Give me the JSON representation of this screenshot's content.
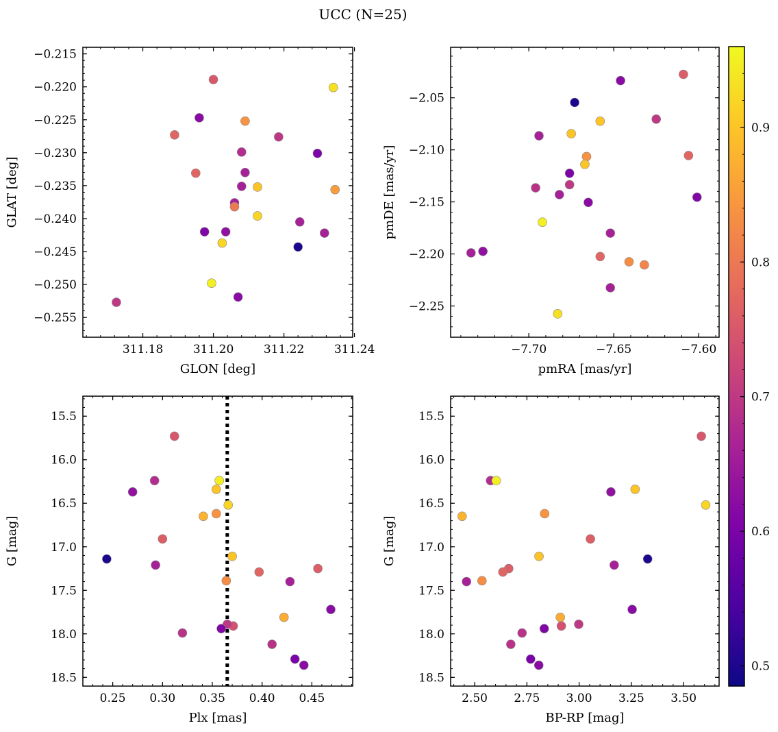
{
  "figure": {
    "title": "UCC (N=25)"
  },
  "colorbar": {
    "colormap": "plasma",
    "range": [
      0.485,
      0.96
    ],
    "ticks": [
      "0.5",
      "0.6",
      "0.7",
      "0.8",
      "0.9"
    ]
  },
  "chart_data": [
    {
      "type": "scatter",
      "xlabel": "GLON [deg]",
      "ylabel": "GLAT [deg]",
      "xlim": [
        311.163,
        311.2395
      ],
      "ylim": [
        -0.258,
        -0.214
      ],
      "xticks": [
        "311.18",
        "311.20",
        "311.22",
        "311.24"
      ],
      "yticks": [
        "−0.215",
        "−0.220",
        "−0.225",
        "−0.230",
        "−0.235",
        "−0.240",
        "−0.245",
        "−0.250",
        "−0.255"
      ],
      "points": [
        {
          "x": 311.2,
          "y": -0.2189,
          "c": 0.75
        },
        {
          "x": 311.234,
          "y": -0.2201,
          "c": 0.93
        },
        {
          "x": 311.196,
          "y": -0.2247,
          "c": 0.62
        },
        {
          "x": 311.209,
          "y": -0.2252,
          "c": 0.84
        },
        {
          "x": 311.189,
          "y": -0.2273,
          "c": 0.77
        },
        {
          "x": 311.2185,
          "y": -0.2276,
          "c": 0.7
        },
        {
          "x": 311.208,
          "y": -0.2299,
          "c": 0.68
        },
        {
          "x": 311.2295,
          "y": -0.2301,
          "c": 0.6
        },
        {
          "x": 311.209,
          "y": -0.233,
          "c": 0.66
        },
        {
          "x": 311.195,
          "y": -0.2331,
          "c": 0.77
        },
        {
          "x": 311.208,
          "y": -0.2351,
          "c": 0.66
        },
        {
          "x": 311.2125,
          "y": -0.2352,
          "c": 0.9
        },
        {
          "x": 311.2345,
          "y": -0.2356,
          "c": 0.85
        },
        {
          "x": 311.206,
          "y": -0.2376,
          "c": 0.66
        },
        {
          "x": 311.206,
          "y": -0.2382,
          "c": 0.8
        },
        {
          "x": 311.2125,
          "y": -0.2396,
          "c": 0.92
        },
        {
          "x": 311.2245,
          "y": -0.2405,
          "c": 0.66
        },
        {
          "x": 311.1975,
          "y": -0.242,
          "c": 0.61
        },
        {
          "x": 311.2035,
          "y": -0.242,
          "c": 0.63
        },
        {
          "x": 311.2315,
          "y": -0.2422,
          "c": 0.66
        },
        {
          "x": 311.2025,
          "y": -0.2437,
          "c": 0.92
        },
        {
          "x": 311.224,
          "y": -0.2443,
          "c": 0.5
        },
        {
          "x": 311.1995,
          "y": -0.2498,
          "c": 0.95
        },
        {
          "x": 311.207,
          "y": -0.2519,
          "c": 0.62
        },
        {
          "x": 311.1725,
          "y": -0.2527,
          "c": 0.7
        }
      ]
    },
    {
      "type": "scatter",
      "xlabel": "pmRA [mas/yr]",
      "ylabel": "pmDE [mas/yr]",
      "xlim": [
        -7.746,
        -7.588
      ],
      "ylim": [
        -2.28,
        -2.0015
      ],
      "xticks": [
        "−7.70",
        "−7.65",
        "−7.60"
      ],
      "yticks": [
        "−2.05",
        "−2.10",
        "−2.15",
        "−2.20",
        "−2.25"
      ],
      "points": [
        {
          "x": -7.609,
          "y": -2.0275,
          "c": 0.76
        },
        {
          "x": -7.646,
          "y": -2.0335,
          "c": 0.62
        },
        {
          "x": -7.673,
          "y": -2.0545,
          "c": 0.5
        },
        {
          "x": -7.625,
          "y": -2.0705,
          "c": 0.7
        },
        {
          "x": -7.658,
          "y": -2.0725,
          "c": 0.9
        },
        {
          "x": -7.675,
          "y": -2.0845,
          "c": 0.9
        },
        {
          "x": -7.694,
          "y": -2.0865,
          "c": 0.66
        },
        {
          "x": -7.606,
          "y": -2.1055,
          "c": 0.77
        },
        {
          "x": -7.666,
          "y": -2.1065,
          "c": 0.84
        },
        {
          "x": -7.667,
          "y": -2.114,
          "c": 0.9
        },
        {
          "x": -7.676,
          "y": -2.1225,
          "c": 0.6
        },
        {
          "x": -7.676,
          "y": -2.1335,
          "c": 0.7
        },
        {
          "x": -7.696,
          "y": -2.1365,
          "c": 0.69
        },
        {
          "x": -7.682,
          "y": -2.143,
          "c": 0.66
        },
        {
          "x": -7.601,
          "y": -2.1455,
          "c": 0.61
        },
        {
          "x": -7.665,
          "y": -2.1505,
          "c": 0.62
        },
        {
          "x": -7.692,
          "y": -2.1695,
          "c": 0.95
        },
        {
          "x": -7.652,
          "y": -2.18,
          "c": 0.66
        },
        {
          "x": -7.727,
          "y": -2.1975,
          "c": 0.63
        },
        {
          "x": -7.734,
          "y": -2.199,
          "c": 0.66
        },
        {
          "x": -7.658,
          "y": -2.2025,
          "c": 0.77
        },
        {
          "x": -7.641,
          "y": -2.2075,
          "c": 0.83
        },
        {
          "x": -7.632,
          "y": -2.2105,
          "c": 0.82
        },
        {
          "x": -7.652,
          "y": -2.2325,
          "c": 0.66
        },
        {
          "x": -7.683,
          "y": -2.2575,
          "c": 0.93
        }
      ]
    },
    {
      "type": "scatter",
      "xlabel": "Plx [mas]",
      "ylabel": "G [mag]",
      "xlim": [
        0.22,
        0.491
      ],
      "ylim": [
        18.6,
        15.27
      ],
      "xticks": [
        "0.25",
        "0.30",
        "0.35",
        "0.40",
        "0.45"
      ],
      "yticks": [
        "15.5",
        "16.0",
        "16.5",
        "17.0",
        "17.5",
        "18.0",
        "18.5"
      ],
      "vline": 0.365,
      "points": [
        {
          "x": 0.312,
          "y": 15.73,
          "c": 0.75
        },
        {
          "x": 0.292,
          "y": 16.24,
          "c": 0.68
        },
        {
          "x": 0.357,
          "y": 16.24,
          "c": 0.95
        },
        {
          "x": 0.27,
          "y": 16.37,
          "c": 0.63
        },
        {
          "x": 0.354,
          "y": 16.34,
          "c": 0.9
        },
        {
          "x": 0.366,
          "y": 16.52,
          "c": 0.92
        },
        {
          "x": 0.354,
          "y": 16.62,
          "c": 0.84
        },
        {
          "x": 0.341,
          "y": 16.65,
          "c": 0.88
        },
        {
          "x": 0.3,
          "y": 16.91,
          "c": 0.76
        },
        {
          "x": 0.37,
          "y": 17.11,
          "c": 0.9
        },
        {
          "x": 0.244,
          "y": 17.14,
          "c": 0.5
        },
        {
          "x": 0.293,
          "y": 17.21,
          "c": 0.66
        },
        {
          "x": 0.456,
          "y": 17.25,
          "c": 0.76
        },
        {
          "x": 0.397,
          "y": 17.29,
          "c": 0.77
        },
        {
          "x": 0.364,
          "y": 17.39,
          "c": 0.83
        },
        {
          "x": 0.428,
          "y": 17.4,
          "c": 0.66
        },
        {
          "x": 0.469,
          "y": 17.72,
          "c": 0.62
        },
        {
          "x": 0.422,
          "y": 17.81,
          "c": 0.87
        },
        {
          "x": 0.371,
          "y": 17.91,
          "c": 0.74
        },
        {
          "x": 0.365,
          "y": 17.89,
          "c": 0.7
        },
        {
          "x": 0.359,
          "y": 17.94,
          "c": 0.61
        },
        {
          "x": 0.32,
          "y": 17.99,
          "c": 0.69
        },
        {
          "x": 0.41,
          "y": 18.12,
          "c": 0.69
        },
        {
          "x": 0.433,
          "y": 18.29,
          "c": 0.6
        },
        {
          "x": 0.442,
          "y": 18.36,
          "c": 0.62
        }
      ]
    },
    {
      "type": "scatter",
      "xlabel": "BP-RP [mag]",
      "ylabel": "G [mag]",
      "xlim": [
        2.385,
        3.67
      ],
      "ylim": [
        18.6,
        15.27
      ],
      "xticks": [
        "2.50",
        "2.75",
        "3.00",
        "3.25",
        "3.50"
      ],
      "yticks": [
        "15.5",
        "16.0",
        "16.5",
        "17.0",
        "17.5",
        "18.0",
        "18.5"
      ],
      "points": [
        {
          "x": 3.585,
          "y": 15.73,
          "c": 0.75
        },
        {
          "x": 2.576,
          "y": 16.24,
          "c": 0.68
        },
        {
          "x": 2.603,
          "y": 16.24,
          "c": 0.95
        },
        {
          "x": 3.152,
          "y": 16.37,
          "c": 0.63
        },
        {
          "x": 3.268,
          "y": 16.34,
          "c": 0.9
        },
        {
          "x": 3.606,
          "y": 16.52,
          "c": 0.92
        },
        {
          "x": 2.835,
          "y": 16.62,
          "c": 0.84
        },
        {
          "x": 2.44,
          "y": 16.65,
          "c": 0.88
        },
        {
          "x": 3.054,
          "y": 16.91,
          "c": 0.76
        },
        {
          "x": 2.808,
          "y": 17.11,
          "c": 0.9
        },
        {
          "x": 3.328,
          "y": 17.14,
          "c": 0.5
        },
        {
          "x": 3.168,
          "y": 17.21,
          "c": 0.66
        },
        {
          "x": 2.663,
          "y": 17.25,
          "c": 0.76
        },
        {
          "x": 2.635,
          "y": 17.29,
          "c": 0.77
        },
        {
          "x": 2.535,
          "y": 17.39,
          "c": 0.83
        },
        {
          "x": 2.461,
          "y": 17.4,
          "c": 0.66
        },
        {
          "x": 3.254,
          "y": 17.72,
          "c": 0.62
        },
        {
          "x": 2.91,
          "y": 17.81,
          "c": 0.87
        },
        {
          "x": 2.915,
          "y": 17.91,
          "c": 0.74
        },
        {
          "x": 2.998,
          "y": 17.89,
          "c": 0.7
        },
        {
          "x": 2.833,
          "y": 17.94,
          "c": 0.61
        },
        {
          "x": 2.727,
          "y": 17.99,
          "c": 0.69
        },
        {
          "x": 2.673,
          "y": 18.12,
          "c": 0.69
        },
        {
          "x": 2.768,
          "y": 18.29,
          "c": 0.6
        },
        {
          "x": 2.807,
          "y": 18.36,
          "c": 0.62
        }
      ]
    }
  ]
}
